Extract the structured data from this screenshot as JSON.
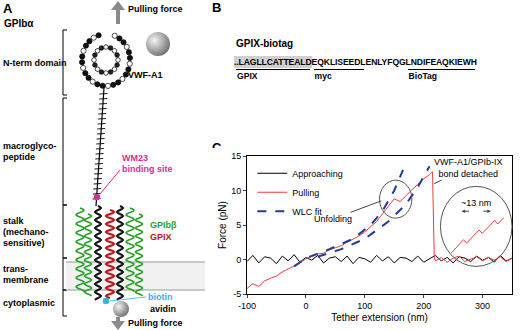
{
  "panel_a": {
    "label": "A",
    "pull_top": "Pulling force",
    "pull_bottom": "Pulling force",
    "protein": "GPIbα",
    "regions": [
      {
        "lines": [
          "N-term domain"
        ]
      },
      {
        "lines": [
          "macroglyco-",
          "peptide"
        ]
      },
      {
        "lines": [
          "stalk",
          "(mechano-",
          "sensitive)"
        ]
      },
      {
        "lines": [
          "trans-",
          "membrane"
        ]
      },
      {
        "lines": [
          "cytoplasmic"
        ]
      }
    ],
    "ligand": "VWF-A1",
    "wm23": [
      "WM23",
      "binding site"
    ],
    "subunits": [
      {
        "text": "GPIbβ",
        "color": "#2ca02c"
      },
      {
        "text": "GPIX",
        "color": "#c0141a"
      }
    ],
    "biotin": "biotin",
    "avidin": "avidin"
  },
  "panel_b": {
    "label": "B",
    "title": "GPIX-biotag",
    "segments": [
      {
        "text": "..LAGLLCATTEALD",
        "label": "GPIX",
        "shaded": true
      },
      {
        "text": "EQKLISEEDL",
        "label": "myc"
      },
      {
        "text": "ENLYFQG"
      },
      {
        "text": "LNDIFEAQKIEWH",
        "label": "BioTag"
      }
    ]
  },
  "chart_data": {
    "panel_label": "C",
    "type": "line",
    "x_label": "Tether extension (nm)",
    "y_label": "Force (pN)",
    "xlim": [
      -100,
      350
    ],
    "ylim": [
      -5,
      15
    ],
    "xticks": [
      -100,
      0,
      100,
      200,
      300
    ],
    "yticks": [
      -5,
      0,
      5,
      10,
      15
    ],
    "grid": false,
    "legend": "top-left",
    "series": [
      {
        "name": "Approaching",
        "color": "#000000",
        "line_style": "solid",
        "x": [
          -100,
          -90,
          -80,
          -70,
          -60,
          -50,
          -40,
          -30,
          -20,
          -10,
          0,
          10,
          20,
          30,
          40,
          50,
          60,
          70,
          80,
          90,
          100,
          110,
          120,
          130,
          140,
          150,
          160,
          170,
          180,
          190,
          200,
          210,
          220,
          230,
          240,
          250,
          260,
          270,
          280,
          290,
          300,
          310,
          320,
          330,
          340,
          350
        ],
        "values": [
          -0.3,
          0.6,
          -0.5,
          0.4,
          0.2,
          -0.6,
          0.5,
          -0.2,
          0.7,
          -0.4,
          0.3,
          -0.1,
          0.6,
          -0.5,
          0.2,
          0.4,
          -0.3,
          0.5,
          -0.6,
          0.3,
          0.1,
          -0.4,
          0.6,
          -0.2,
          0.4,
          -0.5,
          0.3,
          0.2,
          -0.3,
          0.5,
          -0.4,
          0.1,
          0.6,
          -0.2,
          0.3,
          -0.5,
          0.4,
          0.2,
          -0.3,
          0.5,
          -0.1,
          0.3,
          -0.4,
          0.6,
          -0.2,
          0.2
        ]
      },
      {
        "name": "Pulling",
        "color": "#f03c3c",
        "line_style": "solid",
        "x": [
          -100,
          -90,
          -80,
          -70,
          -60,
          -50,
          -40,
          -30,
          -20,
          -10,
          0,
          10,
          20,
          30,
          40,
          50,
          60,
          70,
          80,
          90,
          100,
          110,
          120,
          130,
          140,
          150,
          160,
          170,
          180,
          190,
          200,
          210,
          215,
          218,
          220,
          230,
          240,
          250,
          260,
          270,
          280,
          290,
          300,
          310,
          320,
          330,
          340,
          350
        ],
        "values": [
          -4.2,
          -3.5,
          -3.9,
          -3.1,
          -2.7,
          -2.4,
          -1.8,
          -1.4,
          -0.9,
          -0.5,
          0.1,
          0.4,
          0.8,
          0.9,
          1.4,
          1.7,
          2.0,
          2.5,
          2.9,
          3.4,
          4.0,
          4.7,
          5.5,
          6.6,
          7.7,
          8.8,
          8.4,
          9.3,
          10.1,
          10.9,
          11.7,
          12.3,
          12.7,
          0.2,
          -0.2,
          0.3,
          -0.4,
          0.2,
          0.5,
          -0.3,
          0.1,
          0.4,
          -0.2,
          0.3,
          -0.1,
          0.4,
          -0.3,
          0.2
        ]
      },
      {
        "name": "WLC fit",
        "color": "#1f3c99",
        "line_style": "dashed",
        "x": [
          -20,
          0,
          40,
          80,
          110,
          130,
          150,
          165,
          null,
          20,
          60,
          100,
          140,
          170,
          190,
          210
        ],
        "values": [
          -1,
          0.2,
          1.5,
          3,
          5,
          7,
          10,
          13,
          null,
          0.4,
          1.5,
          3,
          5.5,
          8,
          10.5,
          13.5
        ]
      }
    ],
    "unfolding_label": "Unfolding",
    "detach_label": [
      "VWF-A1/GPIb-IX",
      "bond detached"
    ],
    "inset": {
      "label": "~13 nm",
      "color": "#f03c3c",
      "tick_labels": false,
      "values": [
        0.2,
        1.1,
        2.0,
        2.9,
        3.7,
        2.8,
        3.6,
        4.5,
        5.4,
        6.2,
        5.3,
        6.1,
        7.0,
        7.9,
        8.6,
        7.7,
        8.5,
        9.4
      ]
    }
  }
}
